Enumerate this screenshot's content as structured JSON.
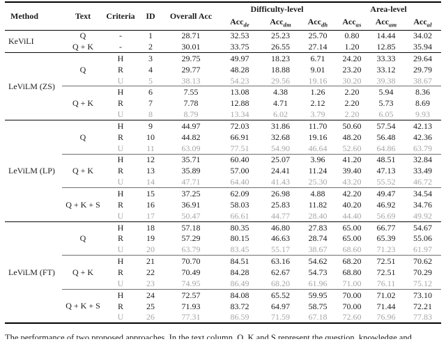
{
  "page": {
    "background": "#ffffff",
    "text_color": "#1b1b1b",
    "muted_color": "#a6a6a6"
  },
  "table": {
    "headers": {
      "method": "Method",
      "text": "Text",
      "criteria": "Criteria",
      "id": "ID",
      "overall": "Overall Acc",
      "group_difficulty": "Difficulty-level",
      "group_area": "Area-level",
      "acc_columns": [
        {
          "main": "Acc",
          "sub": "de"
        },
        {
          "main": "Acc",
          "sub": "dm"
        },
        {
          "main": "Acc",
          "sub": "dh"
        },
        {
          "main": "Acc",
          "sub": "as"
        },
        {
          "main": "Acc",
          "sub": "am"
        },
        {
          "main": "Acc",
          "sub": "al"
        }
      ]
    },
    "groups": [
      {
        "method": "KeViLI",
        "text_groups": [
          {
            "text": "Q",
            "divider": false,
            "rows": [
              {
                "criteria": "-",
                "id": "1",
                "muted": false,
                "values": [
                  "28.71",
                  "32.53",
                  "25.23",
                  "25.70",
                  "0.80",
                  "14.44",
                  "34.02"
                ]
              }
            ]
          },
          {
            "text": "Q + K",
            "divider": false,
            "rows": [
              {
                "criteria": "-",
                "id": "2",
                "muted": false,
                "values": [
                  "30.01",
                  "33.75",
                  "26.55",
                  "27.14",
                  "1.20",
                  "12.85",
                  "35.94"
                ]
              }
            ]
          }
        ]
      },
      {
        "method": "LeViLM (ZS)",
        "text_groups": [
          {
            "text": "Q",
            "divider": false,
            "rows": [
              {
                "criteria": "H",
                "id": "3",
                "muted": false,
                "values": [
                  "29.75",
                  "49.97",
                  "18.23",
                  "6.71",
                  "24.20",
                  "33.33",
                  "29.64"
                ]
              },
              {
                "criteria": "R",
                "id": "4",
                "muted": false,
                "values": [
                  "29.77",
                  "48.28",
                  "18.88",
                  "9.01",
                  "23.20",
                  "33.12",
                  "29.79"
                ]
              },
              {
                "criteria": "U",
                "id": "5",
                "muted": true,
                "values": [
                  "38.13",
                  "54.23",
                  "29.56",
                  "19.16",
                  "30.20",
                  "39.38",
                  "38.67"
                ]
              }
            ]
          },
          {
            "text": "Q + K",
            "divider": true,
            "rows": [
              {
                "criteria": "H",
                "id": "6",
                "muted": false,
                "values": [
                  "7.55",
                  "13.08",
                  "4.38",
                  "1.26",
                  "2.20",
                  "5.94",
                  "8.36"
                ]
              },
              {
                "criteria": "R",
                "id": "7",
                "muted": false,
                "values": [
                  "7.78",
                  "12.88",
                  "4.71",
                  "2.12",
                  "2.20",
                  "5.73",
                  "8.69"
                ]
              },
              {
                "criteria": "U",
                "id": "8",
                "muted": true,
                "values": [
                  "8.79",
                  "13.34",
                  "6.02",
                  "3.79",
                  "2.20",
                  "6.05",
                  "9.93"
                ]
              }
            ]
          }
        ]
      },
      {
        "method": "LeViLM (LP)",
        "text_groups": [
          {
            "text": "Q",
            "divider": false,
            "rows": [
              {
                "criteria": "H",
                "id": "9",
                "muted": false,
                "values": [
                  "44.97",
                  "72.03",
                  "31.86",
                  "11.70",
                  "50.60",
                  "57.54",
                  "42.13"
                ]
              },
              {
                "criteria": "R",
                "id": "10",
                "muted": false,
                "values": [
                  "44.82",
                  "66.91",
                  "32.68",
                  "19.16",
                  "48.20",
                  "56.48",
                  "42.36"
                ]
              },
              {
                "criteria": "U",
                "id": "11",
                "muted": true,
                "values": [
                  "63.09",
                  "77.51",
                  "54.90",
                  "46.64",
                  "52.60",
                  "64.86",
                  "63.79"
                ]
              }
            ]
          },
          {
            "text": "Q + K",
            "divider": true,
            "rows": [
              {
                "criteria": "H",
                "id": "12",
                "muted": false,
                "values": [
                  "35.71",
                  "60.40",
                  "25.07",
                  "3.96",
                  "41.20",
                  "48.51",
                  "32.84"
                ]
              },
              {
                "criteria": "R",
                "id": "13",
                "muted": false,
                "values": [
                  "35.89",
                  "57.00",
                  "24.41",
                  "11.24",
                  "39.40",
                  "47.13",
                  "33.49"
                ]
              },
              {
                "criteria": "U",
                "id": "14",
                "muted": true,
                "values": [
                  "47.71",
                  "64.40",
                  "41.43",
                  "25.30",
                  "43.20",
                  "55.52",
                  "46.72"
                ]
              }
            ]
          },
          {
            "text": "Q + K + S",
            "divider": true,
            "rows": [
              {
                "criteria": "H",
                "id": "15",
                "muted": false,
                "values": [
                  "37.25",
                  "62.09",
                  "26.98",
                  "4.88",
                  "42.20",
                  "49.47",
                  "34.54"
                ]
              },
              {
                "criteria": "R",
                "id": "16",
                "muted": false,
                "values": [
                  "36.91",
                  "58.03",
                  "25.83",
                  "11.82",
                  "40.20",
                  "46.92",
                  "34.76"
                ]
              },
              {
                "criteria": "U",
                "id": "17",
                "muted": true,
                "values": [
                  "50.47",
                  "66.61",
                  "44.77",
                  "28.40",
                  "44.40",
                  "56.69",
                  "49.92"
                ]
              }
            ]
          }
        ]
      },
      {
        "method": "LeViLM (FT)",
        "text_groups": [
          {
            "text": "Q",
            "divider": false,
            "rows": [
              {
                "criteria": "H",
                "id": "18",
                "muted": false,
                "values": [
                  "57.18",
                  "80.35",
                  "46.80",
                  "27.83",
                  "65.00",
                  "66.77",
                  "54.67"
                ]
              },
              {
                "criteria": "R",
                "id": "19",
                "muted": false,
                "values": [
                  "57.29",
                  "80.15",
                  "46.63",
                  "28.74",
                  "65.00",
                  "65.39",
                  "55.06"
                ]
              },
              {
                "criteria": "U",
                "id": "20",
                "muted": true,
                "values": [
                  "63.79",
                  "83.45",
                  "55.17",
                  "38.67",
                  "68.60",
                  "71.23",
                  "61.97"
                ]
              }
            ]
          },
          {
            "text": "Q + K",
            "divider": true,
            "rows": [
              {
                "criteria": "H",
                "id": "21",
                "muted": false,
                "values": [
                  "70.70",
                  "84.51",
                  "63.16",
                  "54.62",
                  "68.20",
                  "72.51",
                  "70.62"
                ]
              },
              {
                "criteria": "R",
                "id": "22",
                "muted": false,
                "values": [
                  "70.49",
                  "84.28",
                  "62.67",
                  "54.73",
                  "68.80",
                  "72.51",
                  "70.29"
                ]
              },
              {
                "criteria": "U",
                "id": "23",
                "muted": true,
                "values": [
                  "74.95",
                  "86.49",
                  "68.20",
                  "61.96",
                  "71.00",
                  "76.11",
                  "75.12"
                ]
              }
            ]
          },
          {
            "text": "Q + K + S",
            "divider": true,
            "rows": [
              {
                "criteria": "H",
                "id": "24",
                "muted": false,
                "values": [
                  "72.57",
                  "84.08",
                  "65.52",
                  "59.95",
                  "70.00",
                  "71.02",
                  "73.10"
                ]
              },
              {
                "criteria": "R",
                "id": "25",
                "muted": false,
                "values": [
                  "71.93",
                  "83.72",
                  "64.97",
                  "58.75",
                  "70.00",
                  "71.44",
                  "72.21"
                ]
              },
              {
                "criteria": "U",
                "id": "26",
                "muted": true,
                "values": [
                  "77.31",
                  "86.59",
                  "71.59",
                  "67.18",
                  "72.60",
                  "76.96",
                  "77.83"
                ]
              }
            ]
          }
        ]
      }
    ]
  },
  "caption": "The performance of two proposed approaches. In the text column, Q, K and S represent the question, knowledge and subtitles, respectively."
}
